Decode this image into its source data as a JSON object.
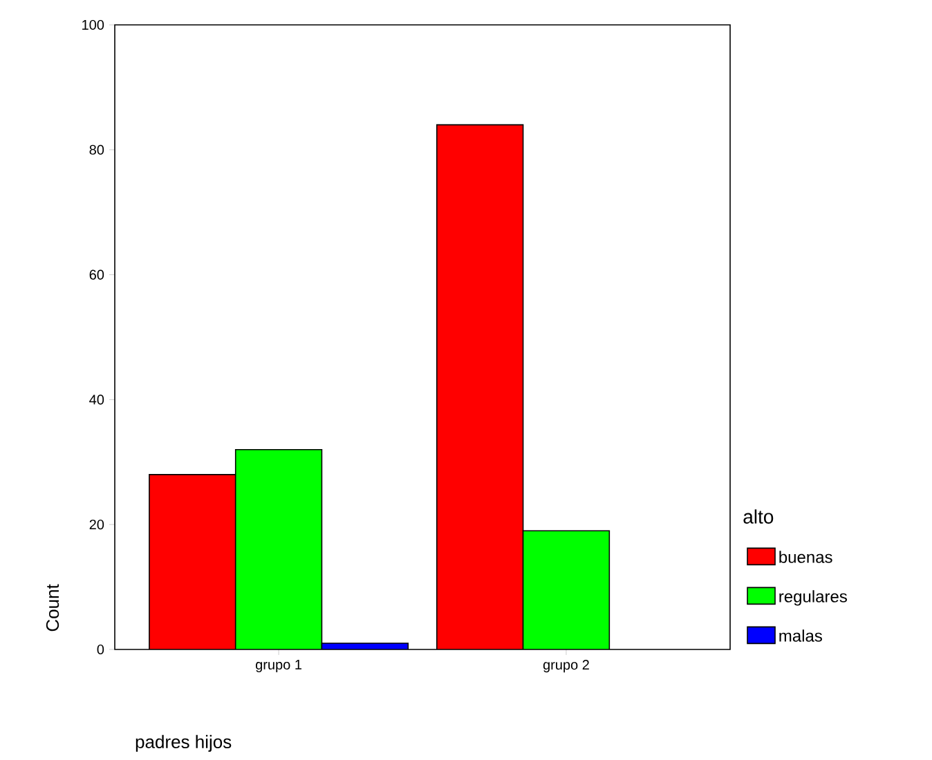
{
  "chart_data": {
    "type": "bar",
    "xlabel": "padres hijos",
    "ylabel": "Count",
    "legend_title": "alto",
    "categories": [
      "grupo 1",
      "grupo 2"
    ],
    "series": [
      {
        "name": "buenas",
        "color": "#ff0000",
        "values": [
          28,
          84
        ]
      },
      {
        "name": "regulares",
        "color": "#00ff00",
        "values": [
          32,
          19
        ]
      },
      {
        "name": "malas",
        "color": "#0000ff",
        "values": [
          1,
          null
        ]
      }
    ],
    "ylim": [
      0,
      100
    ],
    "yticks": [
      0,
      20,
      40,
      60,
      80,
      100
    ],
    "grid": false,
    "legend": "right"
  }
}
